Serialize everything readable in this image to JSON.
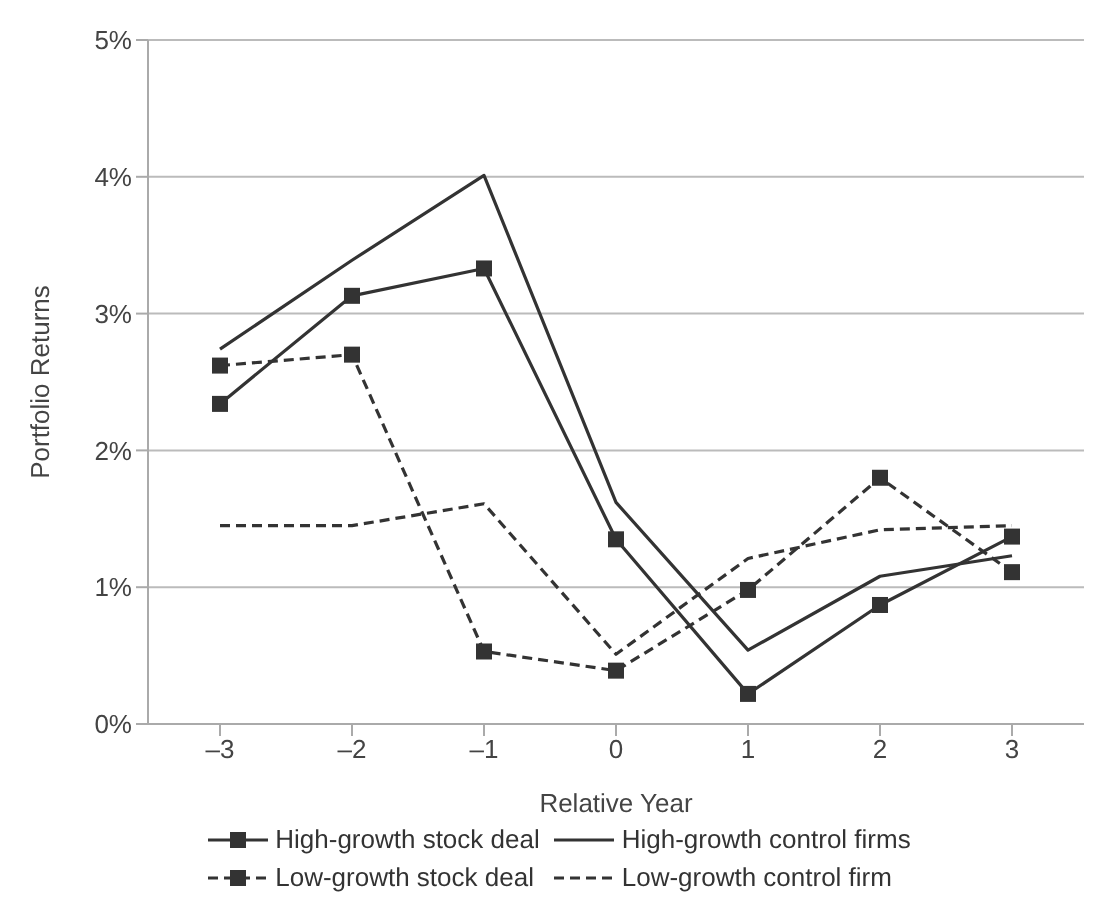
{
  "chart_data": {
    "type": "line",
    "xlabel": "Relative Year",
    "ylabel": "Portfolio Returns",
    "categories": [
      "–3",
      "–2",
      "–1",
      "0",
      "1",
      "2",
      "3"
    ],
    "series": [
      {
        "name": "High-growth stock deal",
        "color": "#333333",
        "marker": "square",
        "line_style": "solid",
        "values": [
          2.34,
          3.13,
          3.33,
          1.35,
          0.22,
          0.87,
          1.37
        ]
      },
      {
        "name": "High-growth control firms",
        "color": "#333333",
        "marker": "none",
        "line_style": "solid",
        "values": [
          2.74,
          3.39,
          4.01,
          1.62,
          0.54,
          1.08,
          1.23
        ]
      },
      {
        "name": "Low-growth stock deal",
        "color": "#333333",
        "marker": "square",
        "line_style": "dashed",
        "values": [
          2.62,
          2.7,
          0.53,
          0.39,
          0.98,
          1.8,
          1.11
        ]
      },
      {
        "name": "Low-growth control firm",
        "color": "#333333",
        "marker": "none",
        "line_style": "dashed",
        "values": [
          1.45,
          1.45,
          1.61,
          0.51,
          1.21,
          1.42,
          1.45
        ]
      }
    ],
    "ylim": [
      0,
      5
    ],
    "yticks": [
      {
        "value": 0,
        "label": "0%"
      },
      {
        "value": 1,
        "label": "1%"
      },
      {
        "value": 2,
        "label": "2%"
      },
      {
        "value": 3,
        "label": "3%"
      },
      {
        "value": 4,
        "label": "4%"
      },
      {
        "value": 5,
        "label": "5%"
      }
    ],
    "grid": "y",
    "legend": "bottom"
  }
}
